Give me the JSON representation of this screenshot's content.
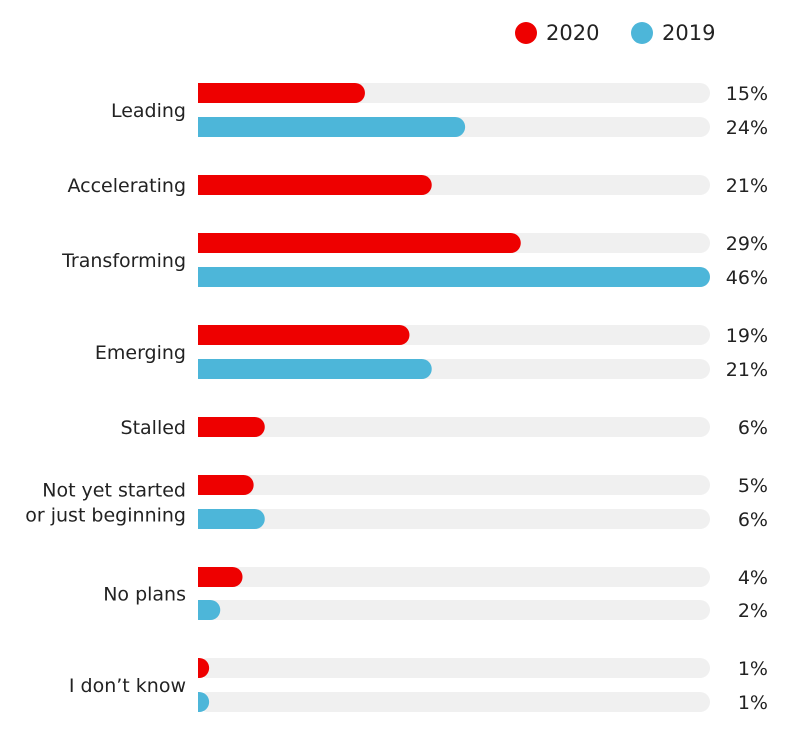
{
  "chart_data": {
    "type": "bar",
    "orientation": "horizontal",
    "categories": [
      [
        "Leading"
      ],
      [
        "Accelerating"
      ],
      [
        "Transforming"
      ],
      [
        "Emerging"
      ],
      [
        "Stalled"
      ],
      [
        "Not yet started",
        "or just beginning"
      ],
      [
        "No plans"
      ],
      [
        "I don’t know"
      ]
    ],
    "series": [
      {
        "name": "2020",
        "color": "#ee0000",
        "values": [
          15,
          21,
          29,
          19,
          6,
          5,
          4,
          1
        ],
        "labels": [
          "15%",
          "21%",
          "29%",
          "19%",
          "6%",
          "5%",
          "4%",
          "1%"
        ]
      },
      {
        "name": "2019",
        "color": "#4db6d9",
        "values": [
          24,
          null,
          46,
          21,
          null,
          6,
          2,
          1
        ],
        "labels": [
          "24%",
          null,
          "46%",
          "21%",
          null,
          "6%",
          "2%",
          "1%"
        ]
      }
    ],
    "xlim": [
      0,
      46
    ],
    "unit": "%",
    "track_color": "#f0f0f0",
    "grid": false,
    "legend": "top-right"
  }
}
